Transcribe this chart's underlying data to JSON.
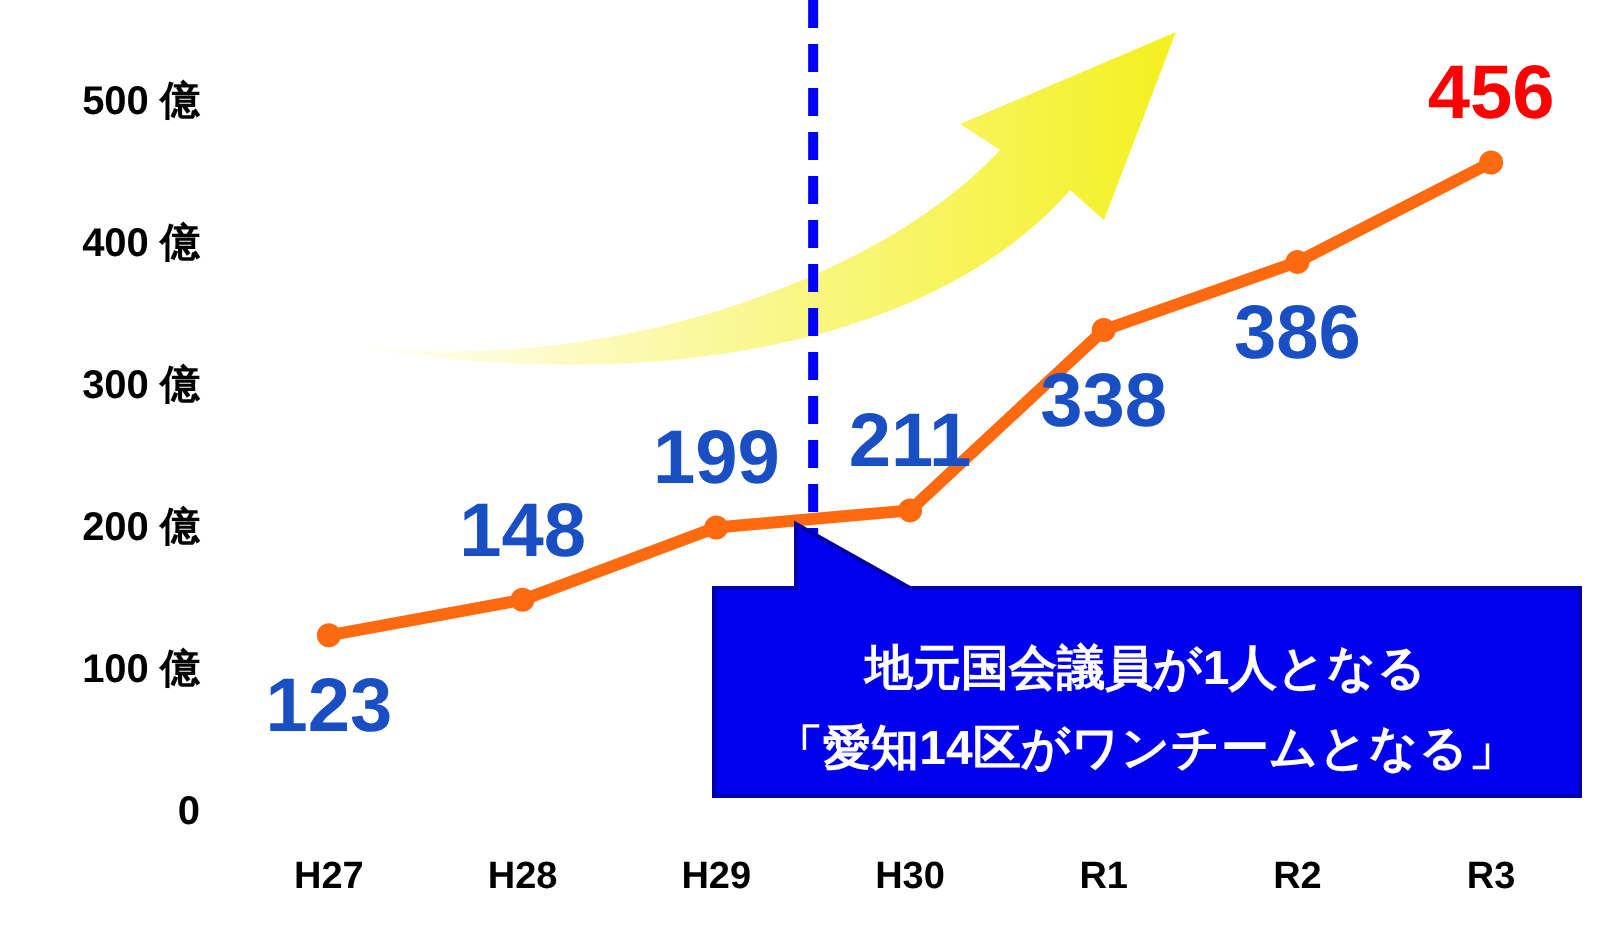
{
  "chart_data": {
    "type": "line",
    "categories": [
      "H27",
      "H28",
      "H29",
      "H30",
      "R1",
      "R2",
      "R3"
    ],
    "series": [
      {
        "color": "#ff6a10",
        "values": [
          123,
          148,
          199,
          211,
          338,
          386,
          456
        ]
      }
    ],
    "ylim": [
      0,
      500
    ],
    "yticks": [
      0,
      {
        "value": 100,
        "label": "100 億"
      },
      {
        "value": 200,
        "label": "200 億"
      },
      {
        "value": 300,
        "label": "300 億"
      },
      {
        "value": 400,
        "label": "400 億"
      },
      {
        "value": 500,
        "label": "500 億"
      }
    ],
    "data_labels": true,
    "marker": "circle",
    "line_style": "solid",
    "annotations": [
      "地元国会議員が1人となる",
      "「愛知14区がワンチームとなる」"
    ]
  }
}
